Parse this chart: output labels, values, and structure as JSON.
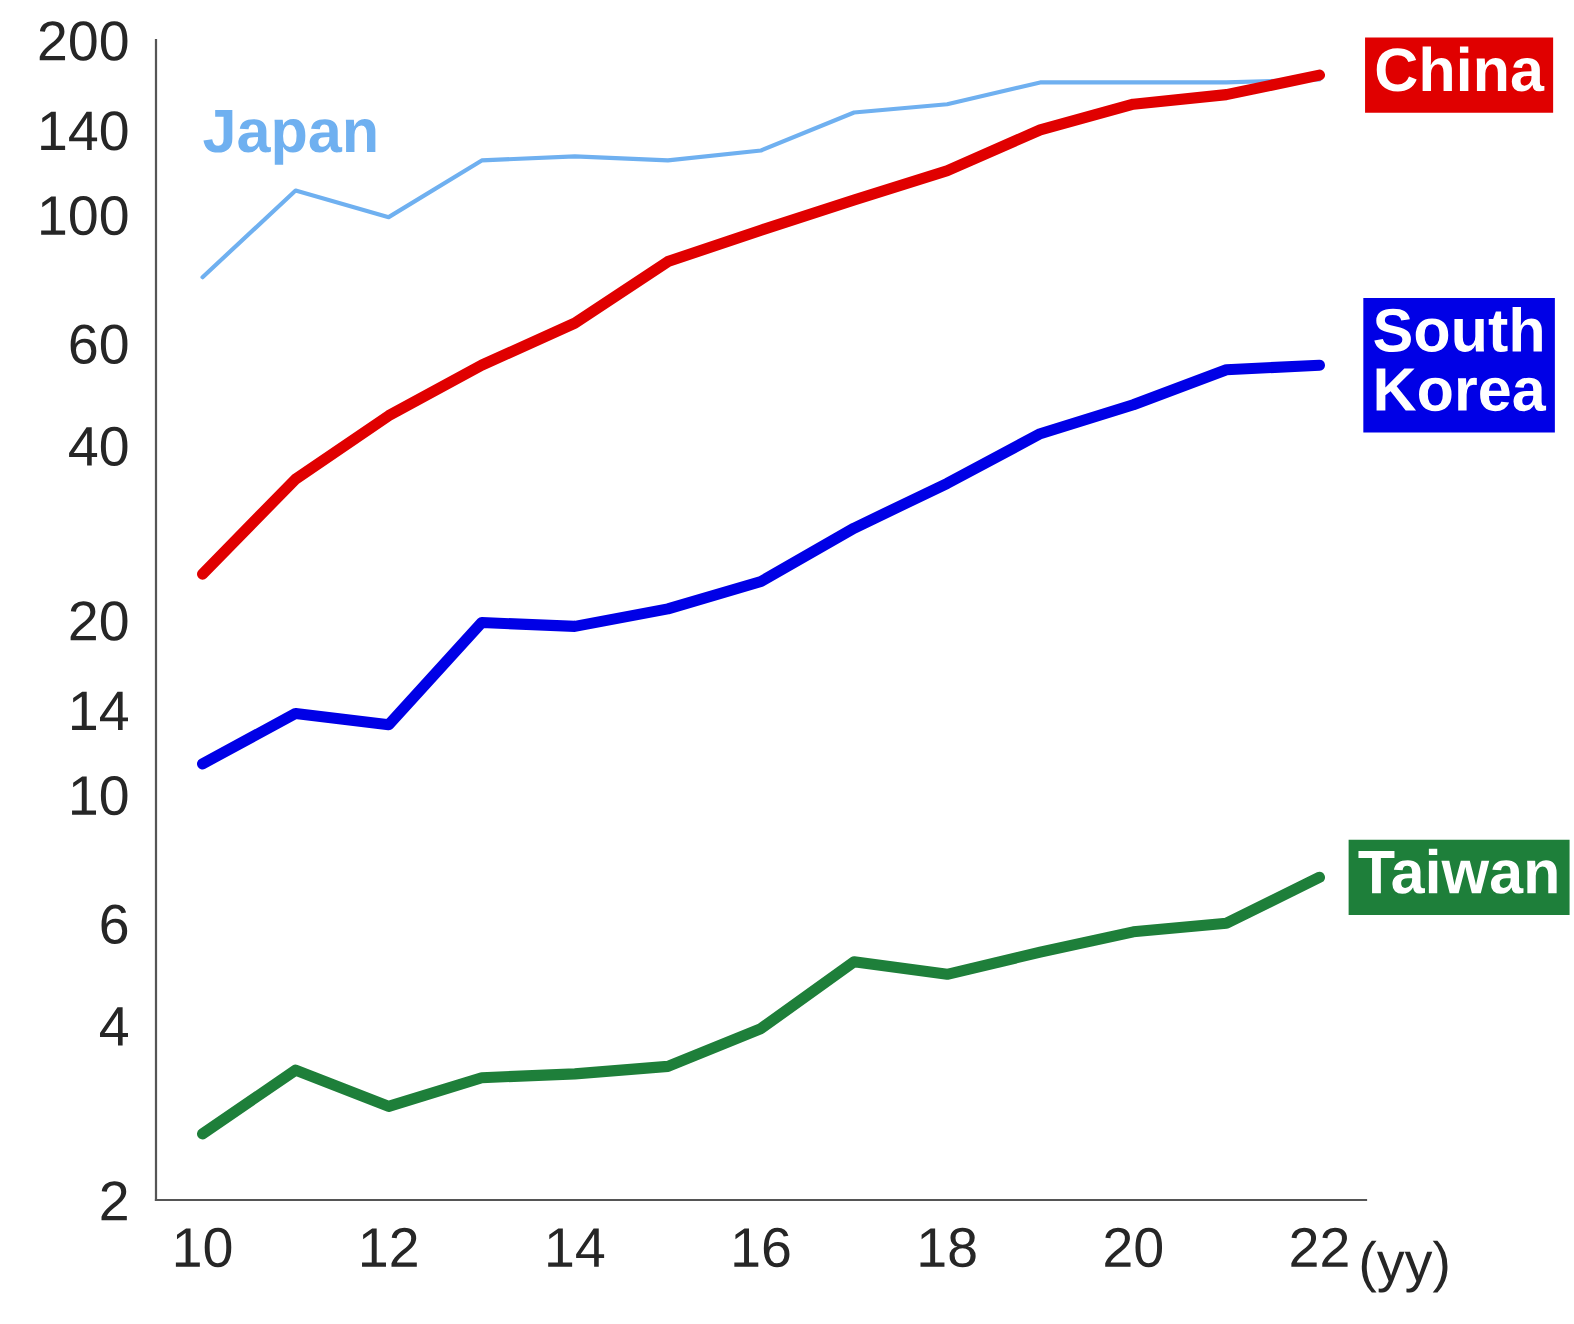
{
  "chart_data": {
    "type": "line",
    "xlabel": "(yy)",
    "log": "y",
    "grid": false,
    "legend": false,
    "x": [
      10,
      11,
      12,
      13,
      14,
      15,
      16,
      17,
      18,
      19,
      20,
      21,
      22
    ],
    "xlim": [
      9.5,
      22.5
    ],
    "xticks": [
      10,
      12,
      14,
      16,
      18,
      20,
      22
    ],
    "ylim": [
      2,
      200
    ],
    "yticks": [
      2,
      4,
      6,
      10,
      14,
      20,
      40,
      60,
      100,
      140,
      200
    ],
    "series": [
      {
        "name": "Japan",
        "color": "#6fb0f0",
        "values": [
          78,
          110,
          99,
          124,
          126,
          124,
          129,
          150,
          155,
          169,
          169,
          169,
          171
        ]
      },
      {
        "name": "China",
        "color": "#e00000",
        "values": [
          24,
          35,
          45,
          55,
          65,
          83,
          94,
          106,
          119,
          140,
          155,
          161,
          174
        ]
      },
      {
        "name": "South Korea",
        "color": "#0000e6",
        "values": [
          11.3,
          13.8,
          13.2,
          19.8,
          19.5,
          20.9,
          23.3,
          28.8,
          34.4,
          41.9,
          47,
          54,
          55
        ]
      },
      {
        "name": "Taiwan",
        "color": "#1e7f3a",
        "values": [
          2.6,
          3.35,
          2.9,
          3.25,
          3.3,
          3.4,
          3.95,
          5.15,
          4.9,
          5.35,
          5.8,
          6.0,
          7.2
        ]
      }
    ]
  }
}
